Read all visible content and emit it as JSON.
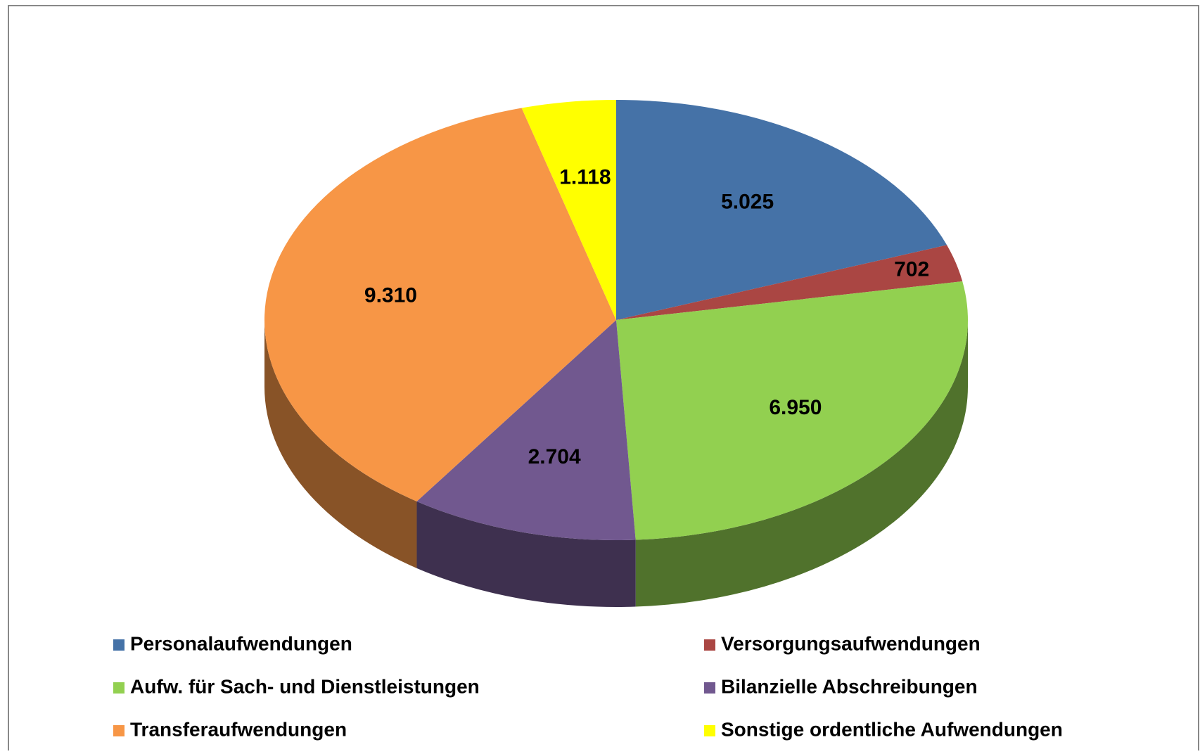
{
  "chart_data": {
    "type": "pie3d",
    "categories": [
      "Personalaufwendungen",
      "Versorgungsaufwendungen",
      "Aufw. für Sach- und Dienstleistungen",
      "Bilanzielle Abschreibungen",
      "Transferaufwendungen",
      "Sonstige ordentliche Aufwendungen"
    ],
    "values": [
      5025,
      702,
      6950,
      2704,
      9310,
      1118
    ],
    "value_labels": [
      "5.025",
      "702",
      "6.950",
      "2.704",
      "9.310",
      "1.118"
    ],
    "colors": [
      "#4572a7",
      "#aa4643",
      "#92d050",
      "#71588f",
      "#f79646",
      "#ffff00"
    ],
    "legend": "bottom"
  }
}
